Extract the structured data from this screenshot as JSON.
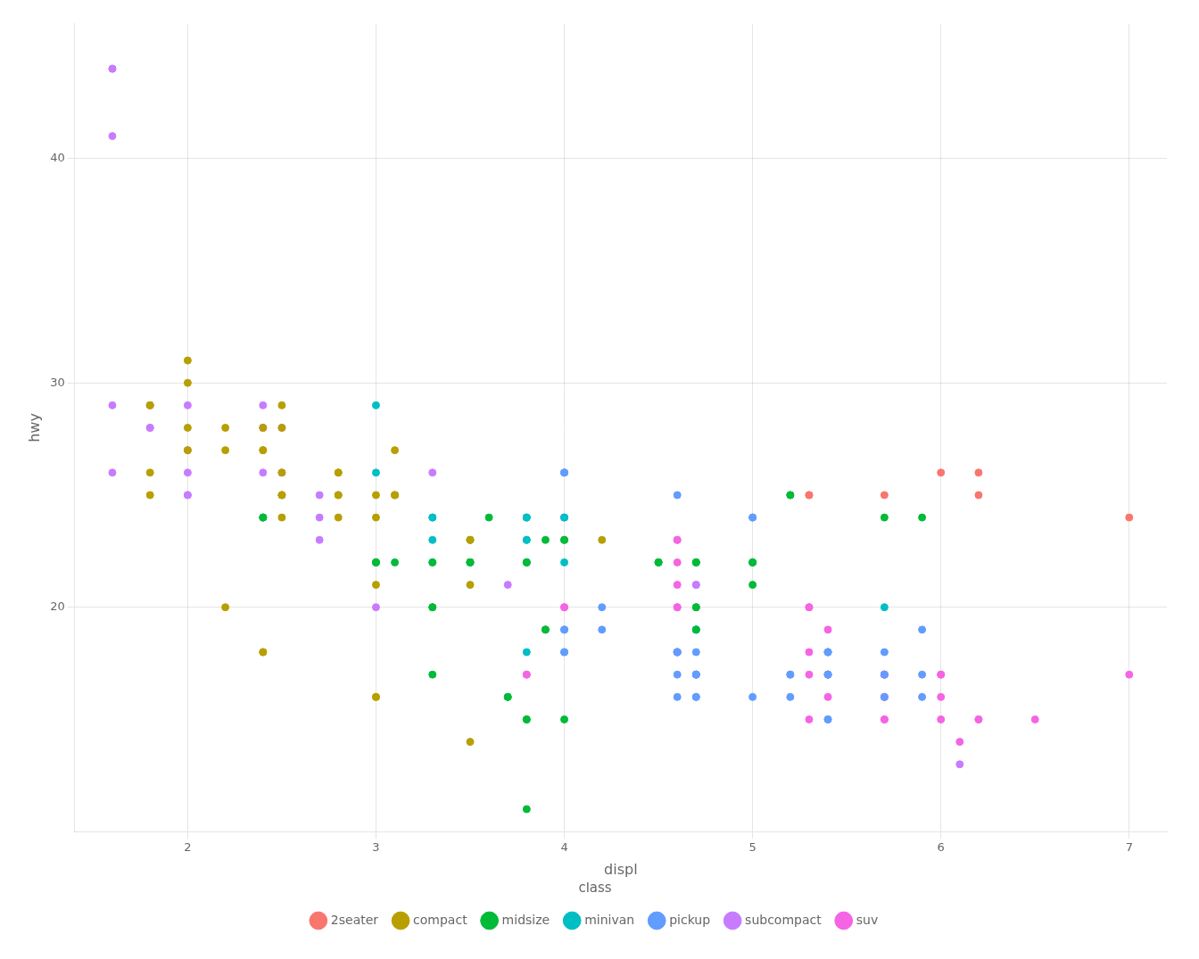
{
  "chart_data": {
    "type": "scatter",
    "xlabel": "displ",
    "ylabel": "hwy",
    "xlim": [
      1.4,
      7.2
    ],
    "ylim": [
      10,
      46
    ],
    "xticks": [
      2,
      3,
      4,
      5,
      6,
      7
    ],
    "yticks": [
      20,
      30,
      40
    ],
    "grid": true,
    "legend": "bottom",
    "legend_title": "class",
    "series": [
      {
        "name": "2seater",
        "color": "#F8766D",
        "x": [
          5.3,
          5.3,
          5.7,
          6.0,
          6.2,
          6.2,
          7.0
        ],
        "values": [
          25,
          25,
          25,
          26,
          26,
          25,
          24
        ]
      },
      {
        "name": "compact",
        "color": "#B79F00",
        "x": [
          1.8,
          1.8,
          2.0,
          2.0,
          2.8,
          2.8,
          3.1,
          1.8,
          1.8,
          2.0,
          2.0,
          2.8,
          2.8,
          3.1,
          3.1,
          2.8,
          3.1,
          4.2,
          2.5,
          2.5,
          3.5,
          3.5,
          2.5,
          2.5,
          2.5,
          2.5,
          2.5,
          3.0,
          3.0,
          3.0,
          3.5,
          2.2,
          2.4,
          2.4,
          3.0,
          3.0,
          3.5,
          2.4,
          2.2,
          2.2,
          2.4,
          2.4
        ],
        "values": [
          29,
          29,
          31,
          30,
          26,
          26,
          27,
          26,
          25,
          28,
          27,
          25,
          25,
          25,
          25,
          24,
          25,
          23,
          24,
          25,
          23,
          23,
          29,
          28,
          26,
          25,
          25,
          25,
          24,
          21,
          21,
          20,
          18,
          18,
          16,
          16,
          14,
          28,
          27,
          28,
          27,
          27
        ]
      },
      {
        "name": "midsize",
        "color": "#00BA38",
        "x": [
          2.4,
          2.4,
          3.1,
          3.5,
          3.6,
          2.4,
          3.0,
          3.5,
          3.3,
          3.3,
          3.3,
          3.3,
          3.8,
          3.8,
          3.8,
          4.0,
          3.7,
          3.7,
          3.9,
          3.9,
          4.7,
          4.7,
          4.7,
          5.2,
          5.2,
          3.9,
          4.7,
          4.7,
          4.7,
          5.7,
          5.9,
          3.0,
          3.0,
          3.5,
          3.5,
          3.5,
          3.8,
          3.8,
          4.0,
          4.0,
          4.5,
          4.5,
          4.5,
          5.0,
          5.0,
          5.0
        ],
        "values": [
          24,
          24,
          22,
          22,
          24,
          24,
          22,
          23,
          22,
          20,
          20,
          17,
          11,
          15,
          15,
          15,
          16,
          16,
          19,
          19,
          19,
          20,
          20,
          25,
          25,
          23,
          22,
          22,
          22,
          24,
          24,
          22,
          22,
          22,
          22,
          22,
          22,
          22,
          23,
          23,
          22,
          22,
          22,
          22,
          21,
          22
        ]
      },
      {
        "name": "minivan",
        "color": "#00BFC4",
        "x": [
          3.0,
          3.0,
          3.3,
          3.3,
          3.3,
          3.3,
          3.8,
          3.8,
          3.8,
          4.0,
          4.0,
          4.7,
          4.7,
          3.8,
          3.8,
          3.8,
          3.8,
          4.7,
          5.7
        ],
        "values": [
          29,
          26,
          24,
          24,
          23,
          22,
          22,
          24,
          24,
          24,
          22,
          19,
          19,
          24,
          23,
          23,
          18,
          19,
          20
        ]
      },
      {
        "name": "pickup",
        "color": "#619CFF",
        "x": [
          4.7,
          4.7,
          4.7,
          5.2,
          5.2,
          5.7,
          5.9,
          4.7,
          4.7,
          4.7,
          4.7,
          5.2,
          5.7,
          5.9,
          4.6,
          5.4,
          5.4,
          4.0,
          4.0,
          4.0,
          4.0,
          4.6,
          5.0,
          4.2,
          4.2,
          4.6,
          4.6,
          4.6,
          5.4,
          5.4,
          5.4,
          5.4,
          5.4,
          4.0,
          4.0,
          4.0,
          4.0,
          4.6,
          5.0,
          5.0,
          5.0,
          5.7,
          5.9
        ],
        "values": [
          17,
          17,
          17,
          17,
          17,
          17,
          17,
          18,
          17,
          16,
          16,
          16,
          16,
          16,
          18,
          17,
          17,
          19,
          19,
          18,
          18,
          18,
          16,
          20,
          19,
          18,
          17,
          16,
          15,
          15,
          18,
          18,
          18,
          24,
          24,
          26,
          26,
          25,
          24,
          24,
          22,
          18,
          19
        ]
      },
      {
        "name": "subcompact",
        "color": "#C77CFF",
        "x": [
          1.6,
          1.6,
          1.6,
          1.6,
          1.6,
          1.8,
          1.8,
          1.8,
          2.0,
          2.4,
          2.4,
          2.4,
          2.4,
          2.5,
          2.5,
          3.3,
          2.0,
          2.0,
          2.0,
          2.0,
          2.7,
          2.7,
          2.7,
          3.0,
          3.7,
          4.0,
          4.7,
          4.7,
          5.7,
          6.1
        ],
        "values": [
          44,
          44,
          41,
          29,
          26,
          28,
          29,
          28,
          29,
          28,
          26,
          29,
          28,
          28,
          26,
          26,
          26,
          27,
          25,
          25,
          24,
          25,
          23,
          20,
          21,
          26,
          21,
          21,
          17,
          13
        ]
      },
      {
        "name": "suv",
        "color": "#F564E3",
        "x": [
          5.3,
          5.3,
          5.3,
          5.7,
          6.0,
          5.7,
          5.7,
          6.2,
          6.2,
          7.0,
          5.3,
          5.3,
          5.7,
          6.5,
          3.8,
          3.8,
          4.0,
          4.0,
          4.6,
          4.6,
          4.6,
          5.4,
          4.6,
          4.6,
          4.6,
          4.6,
          4.6,
          4.6,
          5.4,
          5.4,
          5.4,
          5.4,
          5.4,
          5.7,
          5.7,
          5.7,
          6.0,
          6.0,
          6.0,
          6.1
        ],
        "values": [
          20,
          15,
          20,
          17,
          17,
          17,
          16,
          15,
          15,
          17,
          17,
          18,
          17,
          15,
          17,
          17,
          20,
          20,
          18,
          18,
          18,
          18,
          23,
          23,
          22,
          21,
          20,
          20,
          19,
          17,
          17,
          17,
          16,
          16,
          15,
          15,
          17,
          16,
          15,
          14
        ]
      }
    ]
  }
}
